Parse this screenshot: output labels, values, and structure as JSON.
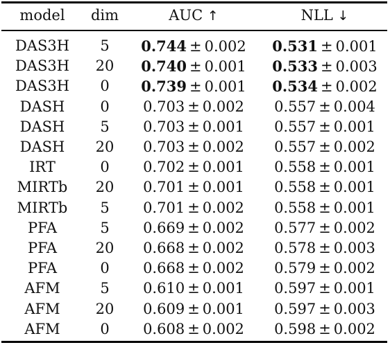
{
  "table": {
    "headers": {
      "model": "model",
      "dim": "dim",
      "auc": "AUC",
      "auc_arrow": "↑",
      "nll": "NLL",
      "nll_arrow": "↓"
    },
    "rows": [
      {
        "model": "DAS3H",
        "dim": "5",
        "auc_mean": "0.744",
        "auc_pm": "±",
        "auc_std": "0.002",
        "auc_bold": true,
        "nll_mean": "0.531",
        "nll_pm": "±",
        "nll_std": "0.001",
        "nll_bold": true
      },
      {
        "model": "DAS3H",
        "dim": "20",
        "auc_mean": "0.740",
        "auc_pm": "±",
        "auc_std": "0.001",
        "auc_bold": true,
        "nll_mean": "0.533",
        "nll_pm": "±",
        "nll_std": "0.003",
        "nll_bold": true
      },
      {
        "model": "DAS3H",
        "dim": "0",
        "auc_mean": "0.739",
        "auc_pm": "±",
        "auc_std": "0.001",
        "auc_bold": true,
        "nll_mean": "0.534",
        "nll_pm": "±",
        "nll_std": "0.002",
        "nll_bold": true
      },
      {
        "model": "DASH",
        "dim": "0",
        "auc_mean": "0.703",
        "auc_pm": "±",
        "auc_std": "0.002",
        "auc_bold": false,
        "nll_mean": "0.557",
        "nll_pm": "±",
        "nll_std": "0.004",
        "nll_bold": false
      },
      {
        "model": "DASH",
        "dim": "5",
        "auc_mean": "0.703",
        "auc_pm": "±",
        "auc_std": "0.001",
        "auc_bold": false,
        "nll_mean": "0.557",
        "nll_pm": "±",
        "nll_std": "0.001",
        "nll_bold": false
      },
      {
        "model": "DASH",
        "dim": "20",
        "auc_mean": "0.703",
        "auc_pm": "±",
        "auc_std": "0.002",
        "auc_bold": false,
        "nll_mean": "0.557",
        "nll_pm": "±",
        "nll_std": "0.002",
        "nll_bold": false
      },
      {
        "model": "IRT",
        "dim": "0",
        "auc_mean": "0.702",
        "auc_pm": "±",
        "auc_std": "0.001",
        "auc_bold": false,
        "nll_mean": "0.558",
        "nll_pm": "±",
        "nll_std": "0.001",
        "nll_bold": false
      },
      {
        "model": "MIRTb",
        "dim": "20",
        "auc_mean": "0.701",
        "auc_pm": "±",
        "auc_std": "0.001",
        "auc_bold": false,
        "nll_mean": "0.558",
        "nll_pm": "±",
        "nll_std": "0.001",
        "nll_bold": false
      },
      {
        "model": "MIRTb",
        "dim": "5",
        "auc_mean": "0.701",
        "auc_pm": "±",
        "auc_std": "0.002",
        "auc_bold": false,
        "nll_mean": "0.558",
        "nll_pm": "±",
        "nll_std": "0.001",
        "nll_bold": false
      },
      {
        "model": "PFA",
        "dim": "5",
        "auc_mean": "0.669",
        "auc_pm": "±",
        "auc_std": "0.002",
        "auc_bold": false,
        "nll_mean": "0.577",
        "nll_pm": "±",
        "nll_std": "0.002",
        "nll_bold": false
      },
      {
        "model": "PFA",
        "dim": "20",
        "auc_mean": "0.668",
        "auc_pm": "±",
        "auc_std": "0.002",
        "auc_bold": false,
        "nll_mean": "0.578",
        "nll_pm": "±",
        "nll_std": "0.003",
        "nll_bold": false
      },
      {
        "model": "PFA",
        "dim": "0",
        "auc_mean": "0.668",
        "auc_pm": "±",
        "auc_std": "0.002",
        "auc_bold": false,
        "nll_mean": "0.579",
        "nll_pm": "±",
        "nll_std": "0.002",
        "nll_bold": false
      },
      {
        "model": "AFM",
        "dim": "5",
        "auc_mean": "0.610",
        "auc_pm": "±",
        "auc_std": "0.001",
        "auc_bold": false,
        "nll_mean": "0.597",
        "nll_pm": "±",
        "nll_std": "0.001",
        "nll_bold": false
      },
      {
        "model": "AFM",
        "dim": "20",
        "auc_mean": "0.609",
        "auc_pm": "±",
        "auc_std": "0.001",
        "auc_bold": false,
        "nll_mean": "0.597",
        "nll_pm": "±",
        "nll_std": "0.003",
        "nll_bold": false
      },
      {
        "model": "AFM",
        "dim": "0",
        "auc_mean": "0.608",
        "auc_pm": "±",
        "auc_std": "0.002",
        "auc_bold": false,
        "nll_mean": "0.598",
        "nll_pm": "±",
        "nll_std": "0.002",
        "nll_bold": false
      }
    ]
  }
}
